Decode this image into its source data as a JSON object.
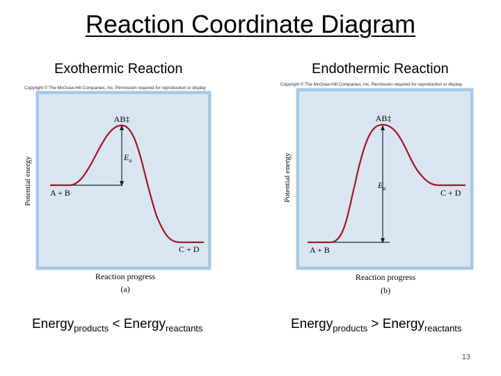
{
  "slide": {
    "title": "Reaction Coordinate Diagram",
    "page_number": "13"
  },
  "left": {
    "heading": "Exothermic Reaction",
    "copyright": "Copyright © The McGraw-Hill Companies, Inc. Permission required for reproduction or display",
    "ylabel": "Potential energy",
    "xlabel": "Reaction progress",
    "sublabel": "(a)",
    "peak_label": "AB‡",
    "ea_label": "E",
    "ea_sub": "a",
    "reactants_label": "A + B",
    "products_label": "C + D",
    "relation": {
      "word1": "Energy",
      "sub1": "products",
      "op": " < ",
      "word2": "Energy",
      "sub2": "reactants"
    },
    "levels": {
      "reactants": 0.47,
      "peak": 1.0,
      "products": 0.0
    }
  },
  "right": {
    "heading": "Endothermic Reaction",
    "copyright": "Copyright © The McGraw-Hill Companies, Inc. Permission required for reproduction or display.",
    "ylabel": "Potential energy",
    "xlabel": "Reaction progress",
    "sublabel": "(b)",
    "peak_label": "AB‡",
    "ea_label": "E",
    "ea_sub": "a",
    "reactants_label": "A + B",
    "products_label": "C + D",
    "relation": {
      "word1": "Energy",
      "sub1": "products",
      "op": " > ",
      "word2": "Energy",
      "sub2": "reactants"
    },
    "levels": {
      "reactants": 0.0,
      "peak": 1.0,
      "products": 0.47
    }
  },
  "colors": {
    "panel_fill": "#d9e6f1",
    "panel_border": "#a8c8e4",
    "curve": "#a3162c",
    "level_line": "#222222"
  }
}
